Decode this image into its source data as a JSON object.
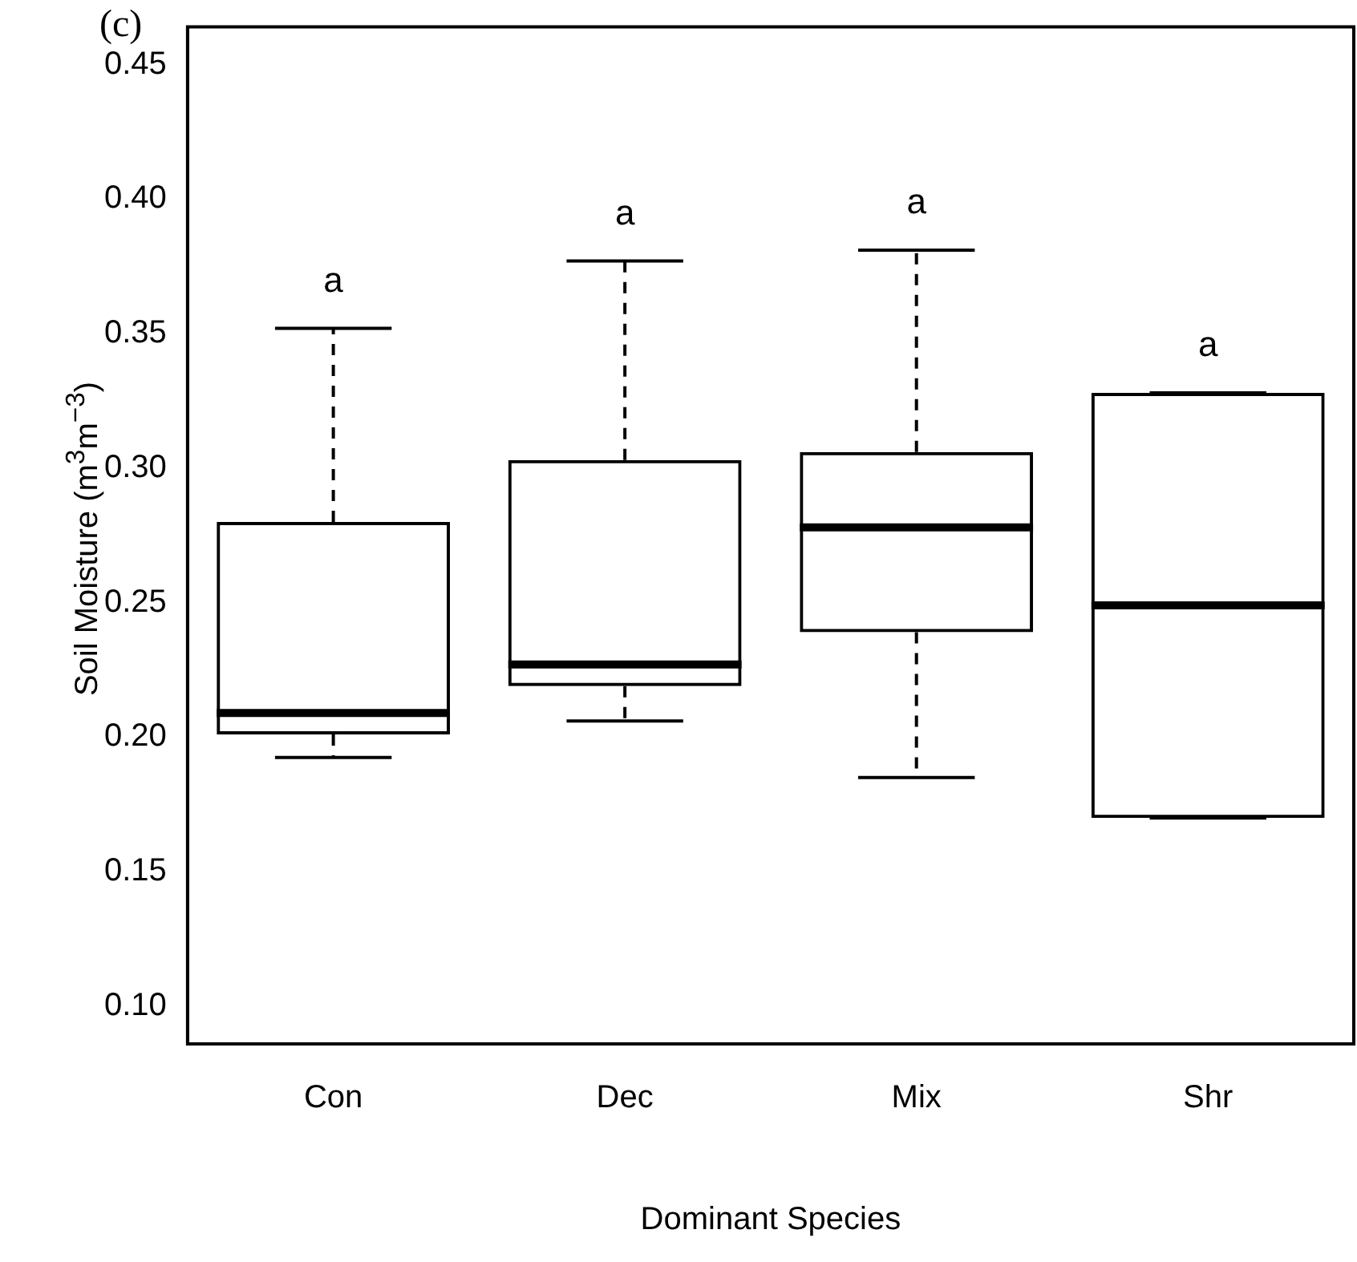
{
  "chart_data": {
    "type": "box",
    "title": "(c)",
    "xlabel": "Dominant Species",
    "ylabel": "Soil Moisture (m$^{3}$m$^{−3}$)",
    "categories": [
      "Con",
      "Dec",
      "Mix",
      "Shr"
    ],
    "boxes": [
      {
        "low": 0.1925,
        "q1": 0.201,
        "median": 0.209,
        "q3": 0.28,
        "high": 0.352
      },
      {
        "low": 0.206,
        "q1": 0.219,
        "median": 0.227,
        "q3": 0.303,
        "high": 0.377
      },
      {
        "low": 0.185,
        "q1": 0.239,
        "median": 0.278,
        "q3": 0.306,
        "high": 0.381
      },
      {
        "low": 0.17,
        "q1": 0.17,
        "median": 0.249,
        "q3": 0.328,
        "high": 0.328
      }
    ],
    "color": "#000000",
    "ylim": [
      0.086,
      0.464
    ],
    "yticks": [
      {
        "value": 0.1,
        "label": "0.10"
      },
      {
        "value": 0.15,
        "label": "0.15"
      },
      {
        "value": 0.2,
        "label": "0.20"
      },
      {
        "value": 0.25,
        "label": "0.25"
      },
      {
        "value": 0.3,
        "label": "0.30"
      },
      {
        "value": 0.35,
        "label": "0.35"
      },
      {
        "value": 0.4,
        "label": "0.40"
      },
      {
        "value": 0.45,
        "label": "0.45"
      }
    ],
    "grid": false,
    "legend": false,
    "annotations": [
      "a",
      "a",
      "a",
      "a"
    ]
  }
}
